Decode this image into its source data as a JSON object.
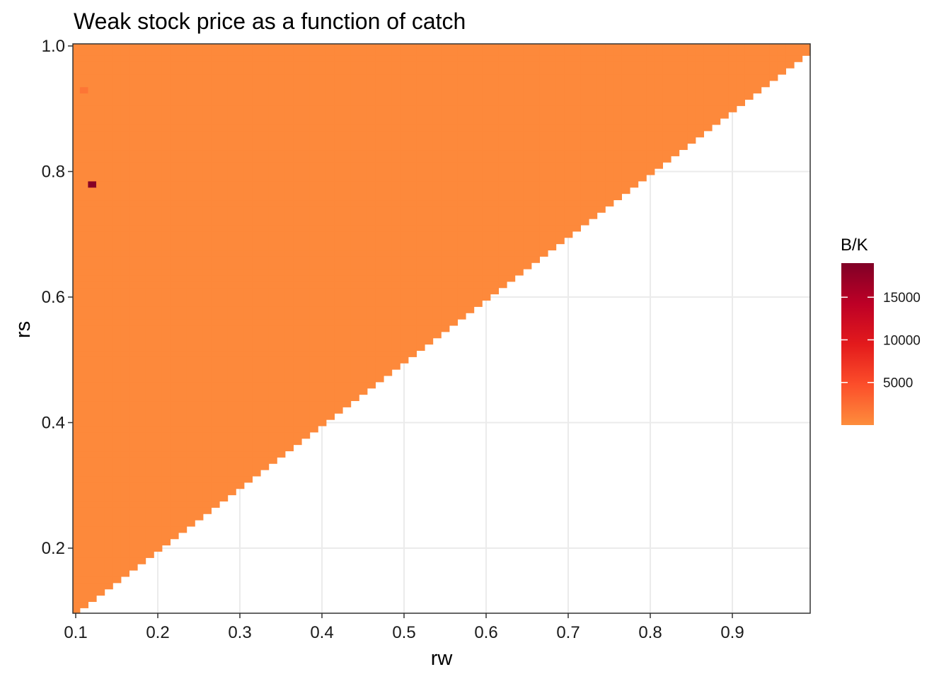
{
  "chart_data": {
    "type": "heatmap",
    "title": "Weak stock price as a function of catch",
    "xlabel": "rw",
    "ylabel": "rs",
    "xlim": [
      0.1,
      0.99
    ],
    "ylim": [
      0.1,
      1.0
    ],
    "x_ticks": [
      "0.1",
      "0.2",
      "0.3",
      "0.4",
      "0.5",
      "0.6",
      "0.7",
      "0.8",
      "0.9"
    ],
    "y_ticks": [
      "0.2",
      "0.4",
      "0.6",
      "0.8",
      "1.0"
    ],
    "grid": true,
    "cell_step": 0.01,
    "fill_rule": "cells present where rs >= rw",
    "fill_value_default": 300,
    "highlighted_cells": [
      {
        "rw": 0.12,
        "rs": 0.78,
        "value": 18500
      },
      {
        "rw": 0.11,
        "rs": 0.93,
        "value": 1800
      }
    ],
    "legend": {
      "title": "B/K",
      "placement": "right",
      "min": 0,
      "max": 19000,
      "ticks": [
        "5000",
        "10000",
        "15000"
      ],
      "colors": [
        "#fd8d3c",
        "#fc4e2a",
        "#e31a1c",
        "#bd0026",
        "#800026"
      ]
    }
  }
}
